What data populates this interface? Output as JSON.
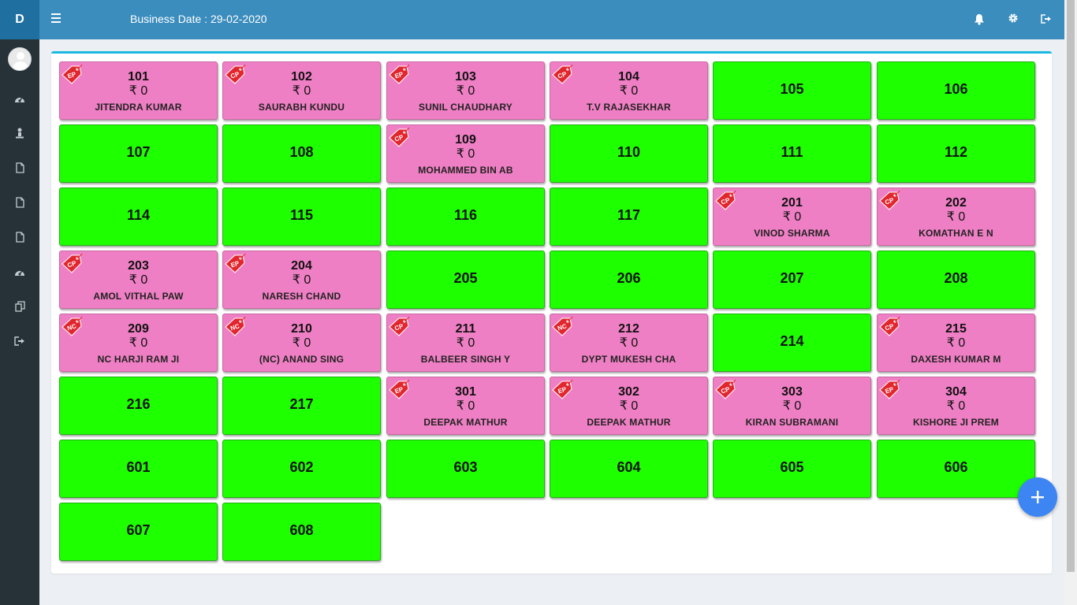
{
  "brand": {
    "letter": "D"
  },
  "header": {
    "business_date": "Business Date : 29-02-2020",
    "icons": [
      "menu-icon",
      "bell-icon",
      "gear-icon",
      "logout-icon"
    ]
  },
  "sidebar": {
    "items": [
      {
        "icon": "dashboard-icon"
      },
      {
        "icon": "person-icon"
      },
      {
        "icon": "file-icon"
      },
      {
        "icon": "file-icon"
      },
      {
        "icon": "file-icon"
      },
      {
        "icon": "dashboard-icon"
      },
      {
        "icon": "copy-icon"
      },
      {
        "icon": "logout-icon"
      }
    ]
  },
  "rooms": [
    {
      "number": "101",
      "amount": "₹ 0",
      "guest": "JITENDRA KUMAR",
      "tag": "EP",
      "status": "occupied"
    },
    {
      "number": "102",
      "amount": "₹ 0",
      "guest": "SAURABH KUNDU",
      "tag": "CP",
      "status": "occupied"
    },
    {
      "number": "103",
      "amount": "₹ 0",
      "guest": "SUNIL CHAUDHARY",
      "tag": "EP",
      "status": "occupied"
    },
    {
      "number": "104",
      "amount": "₹ 0",
      "guest": "T.V RAJASEKHAR",
      "tag": "CP",
      "status": "occupied"
    },
    {
      "number": "105",
      "status": "vacant"
    },
    {
      "number": "106",
      "status": "vacant"
    },
    {
      "number": "107",
      "status": "vacant"
    },
    {
      "number": "108",
      "status": "vacant"
    },
    {
      "number": "109",
      "amount": "₹ 0",
      "guest": "MOHAMMED BIN AB",
      "tag": "CP",
      "status": "occupied"
    },
    {
      "number": "110",
      "status": "vacant"
    },
    {
      "number": "111",
      "status": "vacant"
    },
    {
      "number": "112",
      "status": "vacant"
    },
    {
      "number": "114",
      "status": "vacant"
    },
    {
      "number": "115",
      "status": "vacant"
    },
    {
      "number": "116",
      "status": "vacant"
    },
    {
      "number": "117",
      "status": "vacant"
    },
    {
      "number": "201",
      "amount": "₹ 0",
      "guest": "VINOD SHARMA",
      "tag": "CP",
      "status": "occupied"
    },
    {
      "number": "202",
      "amount": "₹ 0",
      "guest": "KOMATHAN E N",
      "tag": "CP",
      "status": "occupied"
    },
    {
      "number": "203",
      "amount": "₹ 0",
      "guest": "AMOL VITHAL PAW",
      "tag": "CP",
      "status": "occupied"
    },
    {
      "number": "204",
      "amount": "₹ 0",
      "guest": "NARESH CHAND",
      "tag": "EP",
      "status": "occupied"
    },
    {
      "number": "205",
      "status": "vacant"
    },
    {
      "number": "206",
      "status": "vacant"
    },
    {
      "number": "207",
      "status": "vacant"
    },
    {
      "number": "208",
      "status": "vacant"
    },
    {
      "number": "209",
      "amount": "₹ 0",
      "guest": "NC HARJI RAM JI",
      "tag": "NC",
      "status": "occupied"
    },
    {
      "number": "210",
      "amount": "₹ 0",
      "guest": "(NC) ANAND SING",
      "tag": "NC",
      "status": "occupied"
    },
    {
      "number": "211",
      "amount": "₹ 0",
      "guest": "BALBEER SINGH Y",
      "tag": "CP",
      "status": "occupied"
    },
    {
      "number": "212",
      "amount": "₹ 0",
      "guest": "DYPT MUKESH CHA",
      "tag": "NC",
      "status": "occupied"
    },
    {
      "number": "214",
      "status": "vacant"
    },
    {
      "number": "215",
      "amount": "₹ 0",
      "guest": "DAXESH KUMAR M",
      "tag": "CP",
      "status": "occupied"
    },
    {
      "number": "216",
      "status": "vacant"
    },
    {
      "number": "217",
      "status": "vacant"
    },
    {
      "number": "301",
      "amount": "₹ 0",
      "guest": "DEEPAK MATHUR",
      "tag": "EP",
      "status": "occupied"
    },
    {
      "number": "302",
      "amount": "₹ 0",
      "guest": "DEEPAK MATHUR",
      "tag": "EP",
      "status": "occupied"
    },
    {
      "number": "303",
      "amount": "₹ 0",
      "guest": "KIRAN SUBRAMANI",
      "tag": "CP",
      "status": "occupied"
    },
    {
      "number": "304",
      "amount": "₹ 0",
      "guest": "KISHORE JI PREM",
      "tag": "EP",
      "status": "occupied"
    },
    {
      "number": "601",
      "status": "vacant"
    },
    {
      "number": "602",
      "status": "vacant"
    },
    {
      "number": "603",
      "status": "vacant"
    },
    {
      "number": "604",
      "status": "vacant"
    },
    {
      "number": "605",
      "status": "vacant"
    },
    {
      "number": "606",
      "status": "vacant"
    },
    {
      "number": "607",
      "status": "vacant"
    },
    {
      "number": "608",
      "status": "vacant"
    }
  ],
  "fab": {
    "icon": "plus-icon"
  },
  "colors": {
    "vacant": "#1eff00",
    "occupied": "#ef7fc4",
    "tag": "#e2262e",
    "header": "#3b8dbd",
    "sidebar": "#263238",
    "fab": "#3d85f2"
  }
}
